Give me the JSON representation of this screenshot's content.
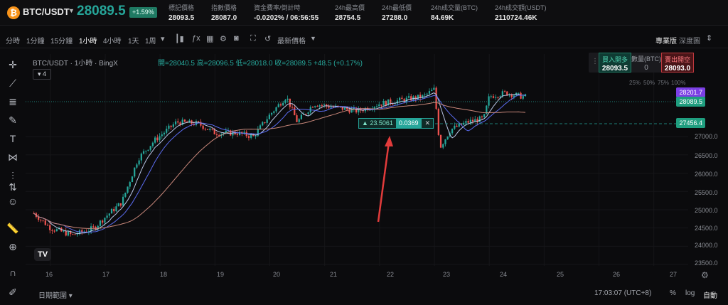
{
  "ticker": {
    "pair": "BTC/USDT",
    "last_price": "28089.5",
    "change_pct": "+1.59%",
    "stats": [
      {
        "label": "標記價格",
        "value": "28093.5"
      },
      {
        "label": "指數價格",
        "value": "28087.0"
      },
      {
        "label": "資金費率/倒計時",
        "value": "-0.0202% / 06:56:55"
      },
      {
        "label": "24h最高價",
        "value": "28754.5"
      },
      {
        "label": "24h最低價",
        "value": "27288.0"
      },
      {
        "label": "24h成交量(BTC)",
        "value": "84.69K"
      },
      {
        "label": "24h成交額(USDT)",
        "value": "2110724.46K"
      }
    ]
  },
  "toolbar": {
    "timeframes": [
      "分時",
      "1分鐘",
      "15分鐘",
      "1小時",
      "4小時",
      "1天",
      "1周"
    ],
    "active_timeframe": "1小時",
    "price_type": "最新價格",
    "pro_label": "專業版",
    "depth_label": "深度圖"
  },
  "legend": {
    "title": "BTC/USDT · 1小時 · BingX",
    "ohlc": "開=28040.5 高=28096.5 低=28018.0 收=28089.5 +48.5 (+0.17%)",
    "indicator_count": "4"
  },
  "trade_widget": {
    "buy_label": "買入開多",
    "buy_price": "28093.5",
    "qty_label": "數量(BTC)",
    "qty_value": "0",
    "sell_label": "賣出開空",
    "sell_price": "28093.0",
    "percents": [
      "25%",
      "50%",
      "75%",
      "100%"
    ]
  },
  "price_tags": {
    "high_line": "28201.7",
    "last": "28089.5",
    "measure_line": "27456.4"
  },
  "measure_tool": {
    "delta": "▲ 23.5061",
    "value": "0.0369",
    "close": "✕"
  },
  "y_axis": [
    "27000.0",
    "26500.0",
    "26000.0",
    "25500.0",
    "25000.0",
    "24500.0",
    "24000.0",
    "23500.0"
  ],
  "x_axis": [
    "16",
    "17",
    "18",
    "19",
    "20",
    "21",
    "22",
    "23",
    "24",
    "25",
    "26",
    "27"
  ],
  "bottom": {
    "date_range": "日期範圍",
    "clock": "17:03:07 (UTC+8)",
    "pct_btn": "%",
    "log_btn": "log",
    "auto_btn": "自動"
  },
  "colors": {
    "up": "#26a69a",
    "down": "#ef5350",
    "ma_fast": "#5b6cf0",
    "ma_mid": "#b9c6e6",
    "ma_slow": "#c8877a"
  },
  "chart_data": {
    "type": "candlestick",
    "ylim": [
      23500,
      28600
    ],
    "x_day_range": [
      15.6,
      27.6
    ],
    "days": [
      16,
      17,
      18,
      19,
      20,
      21,
      22,
      23,
      24,
      25,
      26,
      27
    ],
    "price_path": [
      [
        15.7,
        24900
      ],
      [
        16.0,
        24500
      ],
      [
        16.4,
        24300
      ],
      [
        16.8,
        24500
      ],
      [
        17.0,
        24800
      ],
      [
        17.3,
        25200
      ],
      [
        17.6,
        26400
      ],
      [
        17.9,
        26900
      ],
      [
        18.3,
        27400
      ],
      [
        18.7,
        27350
      ],
      [
        19.0,
        27100
      ],
      [
        19.4,
        27100
      ],
      [
        19.7,
        27000
      ],
      [
        20.0,
        27600
      ],
      [
        20.3,
        28100
      ],
      [
        20.5,
        27400
      ],
      [
        20.8,
        27900
      ],
      [
        21.2,
        27800
      ],
      [
        21.6,
        27700
      ],
      [
        22.0,
        27900
      ],
      [
        22.4,
        28000
      ],
      [
        22.8,
        28100
      ],
      [
        23.0,
        28300
      ],
      [
        23.1,
        26700
      ],
      [
        23.3,
        27200
      ],
      [
        23.6,
        27400
      ],
      [
        23.9,
        27500
      ],
      [
        24.0,
        28100
      ],
      [
        24.3,
        28200
      ],
      [
        24.6,
        28100
      ],
      [
        24.7,
        28090
      ]
    ]
  }
}
